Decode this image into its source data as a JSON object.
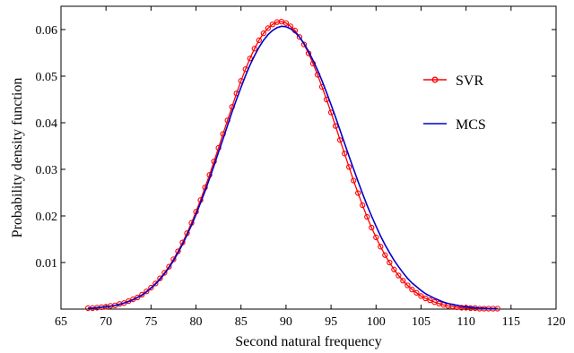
{
  "chart_data": {
    "type": "line",
    "title": "",
    "xlabel": "Second natural frequency",
    "ylabel": "Probability density function",
    "xlim": [
      65,
      120
    ],
    "ylim": [
      0,
      0.065
    ],
    "xticks": [
      65,
      70,
      75,
      80,
      85,
      90,
      95,
      100,
      105,
      110,
      115,
      120
    ],
    "yticks": [
      0.01,
      0.02,
      0.03,
      0.04,
      0.05,
      0.06
    ],
    "ytick_labels": [
      "0.01",
      "0.02",
      "0.03",
      "0.04",
      "0.05",
      "0.06"
    ],
    "grid": false,
    "legend_position": "right",
    "series": [
      {
        "name": "SVR",
        "color": "#ff0000",
        "marker": "circle",
        "x": [
          68.0,
          68.5,
          69.0,
          69.5,
          70.0,
          70.5,
          71.0,
          71.5,
          72.0,
          72.5,
          73.0,
          73.5,
          74.0,
          74.5,
          75.0,
          75.5,
          76.0,
          76.5,
          77.0,
          77.5,
          78.0,
          78.5,
          79.0,
          79.5,
          80.0,
          80.5,
          81.0,
          81.5,
          82.0,
          82.5,
          83.0,
          83.5,
          84.0,
          84.5,
          85.0,
          85.5,
          86.0,
          86.5,
          87.0,
          87.5,
          88.0,
          88.5,
          89.0,
          89.5,
          90.0,
          90.5,
          91.0,
          91.5,
          92.0,
          92.5,
          93.0,
          93.5,
          94.0,
          94.5,
          95.0,
          95.5,
          96.0,
          96.5,
          97.0,
          97.5,
          98.0,
          98.5,
          99.0,
          99.5,
          100.0,
          100.5,
          101.0,
          101.5,
          102.0,
          102.5,
          103.0,
          103.5,
          104.0,
          104.5,
          105.0,
          105.5,
          106.0,
          106.5,
          107.0,
          107.5,
          108.0,
          108.5,
          109.0,
          109.5,
          110.0,
          110.5,
          111.0,
          111.5,
          112.0,
          112.5,
          113.0,
          113.5
        ],
        "y": [
          0.0002,
          0.0002,
          0.0003,
          0.0004,
          0.0005,
          0.0007,
          0.0008,
          0.0011,
          0.0013,
          0.0017,
          0.0021,
          0.0025,
          0.0031,
          0.0038,
          0.0046,
          0.0055,
          0.0066,
          0.0078,
          0.0091,
          0.0107,
          0.0124,
          0.0143,
          0.0163,
          0.0185,
          0.0209,
          0.0234,
          0.0261,
          0.0288,
          0.0317,
          0.0346,
          0.0376,
          0.0405,
          0.0434,
          0.0463,
          0.049,
          0.0515,
          0.0538,
          0.0559,
          0.0577,
          0.0592,
          0.0603,
          0.0611,
          0.0616,
          0.0617,
          0.0614,
          0.0607,
          0.0598,
          0.0584,
          0.0568,
          0.0549,
          0.0527,
          0.0503,
          0.0477,
          0.045,
          0.0422,
          0.0393,
          0.0363,
          0.0334,
          0.0305,
          0.0276,
          0.0249,
          0.0223,
          0.0198,
          0.0175,
          0.0154,
          0.0134,
          0.0116,
          0.01,
          0.0085,
          0.0072,
          0.0061,
          0.0051,
          0.0042,
          0.0035,
          0.0028,
          0.0023,
          0.0019,
          0.0015,
          0.0012,
          0.0009,
          0.0007,
          0.0006,
          0.0004,
          0.0003,
          0.0003,
          0.0002,
          0.0002,
          0.0001,
          0.0001,
          0.0001,
          0.0001,
          0.0001
        ]
      },
      {
        "name": "MCS",
        "color": "#0000cc",
        "marker": "none",
        "x": [
          68.0,
          68.5,
          69.0,
          69.5,
          70.0,
          70.5,
          71.0,
          71.5,
          72.0,
          72.5,
          73.0,
          73.5,
          74.0,
          74.5,
          75.0,
          75.5,
          76.0,
          76.5,
          77.0,
          77.5,
          78.0,
          78.5,
          79.0,
          79.5,
          80.0,
          80.5,
          81.0,
          81.5,
          82.0,
          82.5,
          83.0,
          83.5,
          84.0,
          84.5,
          85.0,
          85.5,
          86.0,
          86.5,
          87.0,
          87.5,
          88.0,
          88.5,
          89.0,
          89.5,
          90.0,
          90.5,
          91.0,
          91.5,
          92.0,
          92.5,
          93.0,
          93.5,
          94.0,
          94.5,
          95.0,
          95.5,
          96.0,
          96.5,
          97.0,
          97.5,
          98.0,
          98.5,
          99.0,
          99.5,
          100.0,
          100.5,
          101.0,
          101.5,
          102.0,
          102.5,
          103.0,
          103.5,
          104.0,
          104.5,
          105.0,
          105.5,
          106.0,
          106.5,
          107.0,
          107.5,
          108.0,
          108.5,
          109.0,
          109.5,
          110.0,
          110.5,
          111.0,
          111.5,
          112.0,
          112.5,
          113.0,
          113.5
        ],
        "y": [
          0.0002,
          0.0002,
          0.0003,
          0.0004,
          0.0005,
          0.0006,
          0.0008,
          0.001,
          0.0013,
          0.0016,
          0.002,
          0.0025,
          0.003,
          0.0037,
          0.0045,
          0.0054,
          0.0064,
          0.0076,
          0.0089,
          0.0104,
          0.0121,
          0.0139,
          0.0159,
          0.018,
          0.0203,
          0.0228,
          0.0253,
          0.028,
          0.0308,
          0.0337,
          0.0365,
          0.0394,
          0.0423,
          0.045,
          0.0476,
          0.0501,
          0.0524,
          0.0544,
          0.0562,
          0.0577,
          0.0589,
          0.0598,
          0.0604,
          0.0607,
          0.0606,
          0.0602,
          0.0594,
          0.0584,
          0.057,
          0.0553,
          0.0534,
          0.0513,
          0.049,
          0.0465,
          0.0439,
          0.0412,
          0.0384,
          0.0356,
          0.0328,
          0.0301,
          0.0274,
          0.0248,
          0.0223,
          0.02,
          0.0178,
          0.0157,
          0.0138,
          0.0121,
          0.0105,
          0.0091,
          0.0078,
          0.0066,
          0.0056,
          0.0048,
          0.004,
          0.0033,
          0.0028,
          0.0023,
          0.0019,
          0.0015,
          0.0012,
          0.001,
          0.0008,
          0.0006,
          0.0005,
          0.0004,
          0.0003,
          0.0002,
          0.0002,
          0.0001,
          0.0001,
          0.0001
        ]
      }
    ]
  }
}
